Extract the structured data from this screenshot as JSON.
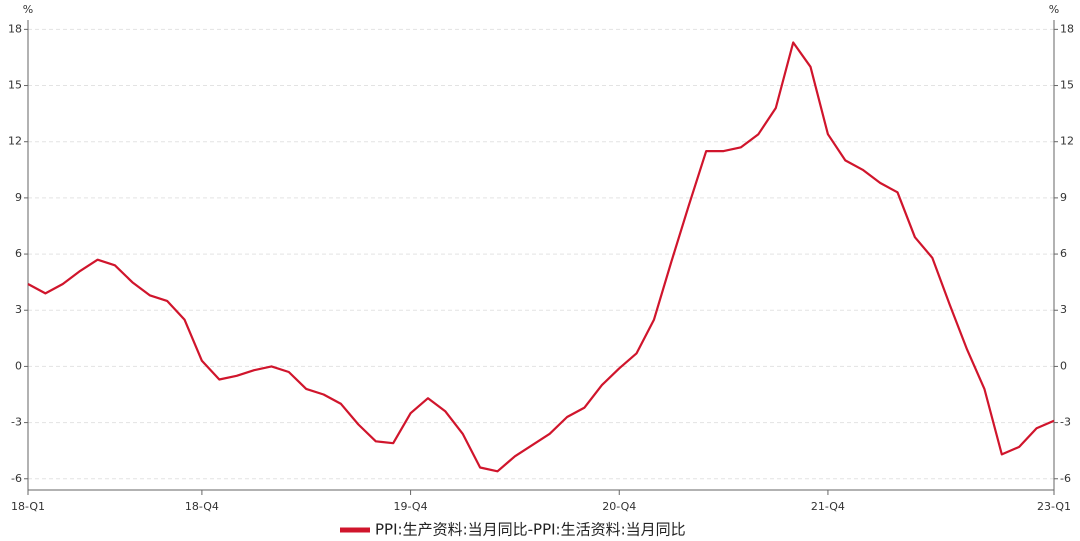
{
  "chart_data": {
    "type": "line",
    "y_unit": "%",
    "categories": [
      "18-Q1",
      null,
      null,
      null,
      null,
      null,
      null,
      null,
      null,
      null,
      "18-Q4",
      null,
      null,
      null,
      null,
      null,
      null,
      null,
      null,
      null,
      null,
      null,
      "19-Q4",
      null,
      null,
      null,
      null,
      null,
      null,
      null,
      null,
      null,
      null,
      null,
      "20-Q4",
      null,
      null,
      null,
      null,
      null,
      null,
      null,
      null,
      null,
      null,
      null,
      "21-Q4",
      null,
      null,
      null,
      null,
      null,
      null,
      null,
      null,
      null,
      null,
      null,
      null,
      "23-Q1"
    ],
    "series": [
      {
        "name": "PPI:生产资料:当月同比-PPI:生活资料:当月同比",
        "color": "#d0152c",
        "values": [
          4.4,
          3.9,
          4.4,
          5.1,
          5.7,
          5.4,
          4.5,
          3.8,
          3.5,
          2.5,
          0.3,
          -0.7,
          -0.5,
          -0.2,
          0.0,
          -0.3,
          -1.2,
          -1.5,
          -2.0,
          -3.1,
          -4.0,
          -4.1,
          -2.5,
          -1.7,
          -2.4,
          -3.6,
          -5.4,
          -5.6,
          -4.8,
          -4.2,
          -3.6,
          -2.7,
          -2.2,
          -1.0,
          -0.1,
          0.7,
          2.5,
          5.6,
          8.6,
          11.5,
          11.5,
          11.7,
          12.4,
          13.8,
          17.3,
          16.0,
          12.4,
          11.0,
          10.5,
          9.8,
          9.3,
          6.9,
          5.8,
          3.3,
          0.9,
          -1.2,
          -4.7,
          -4.3,
          -3.3,
          -2.9
        ]
      }
    ],
    "ylim": [
      -6.6,
      18.5
    ],
    "yticks": [
      -6,
      -3,
      0,
      3,
      6,
      9,
      12,
      15,
      18
    ],
    "grid": true,
    "legend": "bottom"
  }
}
